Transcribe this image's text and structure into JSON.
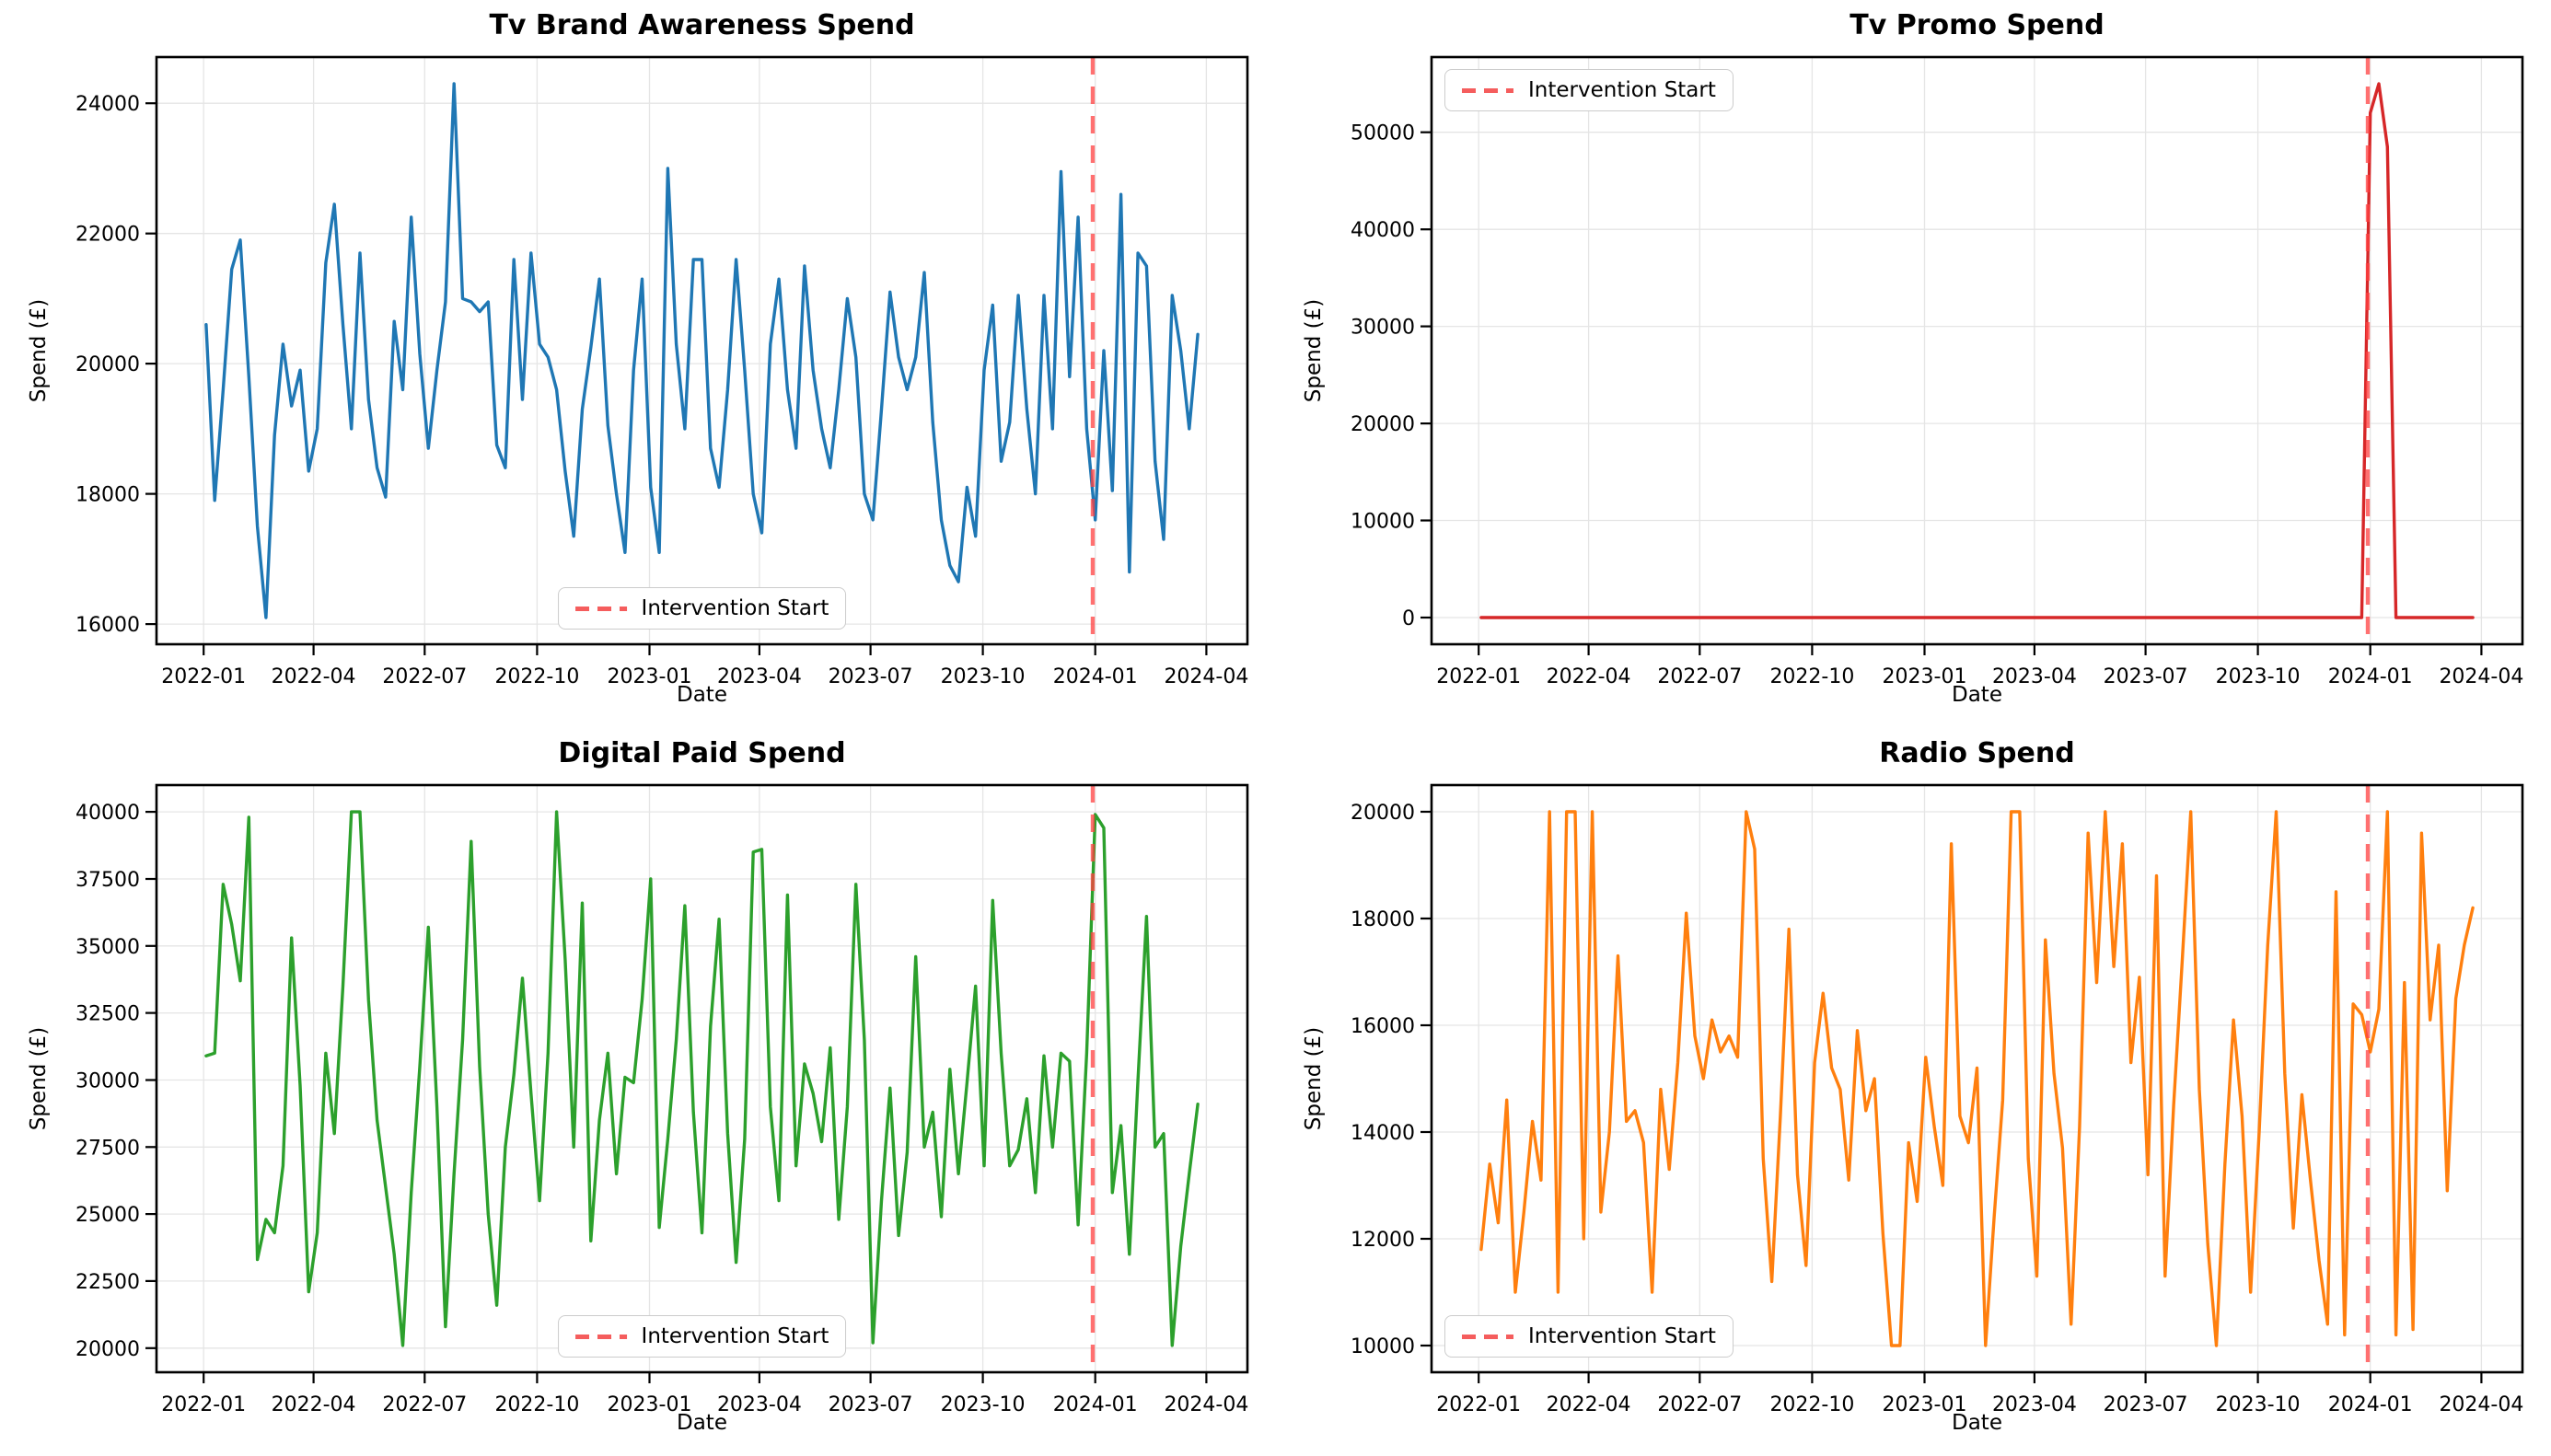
{
  "chart_data": {
    "type": "line",
    "figure_note": "2x2 grid of weekly marketing spend time series",
    "style": {
      "grid_color": "#e5e5e5",
      "spine_color": "#000000",
      "background": "#ffffff"
    },
    "x_axis": {
      "label": "Date",
      "start_date": "2022-01-03",
      "interval_days": 7,
      "n_points": 117,
      "ticks": [
        {
          "date": "2022-01-01",
          "label": "2022-01"
        },
        {
          "date": "2022-04-01",
          "label": "2022-04"
        },
        {
          "date": "2022-07-01",
          "label": "2022-07"
        },
        {
          "date": "2022-10-01",
          "label": "2022-10"
        },
        {
          "date": "2023-01-01",
          "label": "2023-01"
        },
        {
          "date": "2023-04-01",
          "label": "2023-04"
        },
        {
          "date": "2023-07-01",
          "label": "2023-07"
        },
        {
          "date": "2023-10-01",
          "label": "2023-10"
        },
        {
          "date": "2024-01-01",
          "label": "2024-01"
        },
        {
          "date": "2024-04-01",
          "label": "2024-04"
        }
      ]
    },
    "intervention": {
      "label": "Intervention Start",
      "date": "2023-12-30",
      "line_color": "#ff4040",
      "line_opacity": 0.75,
      "legend_dash_color": "#f55d5d"
    },
    "charts": [
      {
        "title": "Tv Brand Awareness Spend",
        "ylabel": "Spend (£)",
        "xlabel": "Date",
        "color": "#1f77b4",
        "ylim": [
          15690,
          24710
        ],
        "y_ticks": [
          16000,
          18000,
          20000,
          22000,
          24000
        ],
        "legend_pos": "lower-center",
        "values": [
          20600,
          17900,
          19600,
          21450,
          21900,
          19800,
          17500,
          16100,
          18900,
          20300,
          19350,
          19900,
          18350,
          19000,
          21550,
          22450,
          20600,
          19000,
          21700,
          19450,
          18400,
          17950,
          20650,
          19600,
          22250,
          20150,
          18700,
          19900,
          20950,
          24300,
          21000,
          20950,
          20800,
          20950,
          18750,
          18400,
          21600,
          19450,
          21700,
          20300,
          20100,
          19600,
          18350,
          17350,
          19300,
          20250,
          21300,
          19050,
          18000,
          17100,
          19900,
          21300,
          18100,
          17100,
          23000,
          20300,
          19000,
          21600,
          21600,
          18700,
          18100,
          19600,
          21600,
          19900,
          18000,
          17400,
          20300,
          21300,
          19600,
          18700,
          21500,
          19900,
          19000,
          18400,
          19600,
          21000,
          20100,
          18000,
          17600,
          19300,
          21100,
          20100,
          19600,
          20100,
          21400,
          19100,
          17600,
          16900,
          16650,
          18100,
          17350,
          19900,
          20900,
          18500,
          19100,
          21050,
          19300,
          18000,
          21050,
          19000,
          22950,
          19800,
          22250,
          19000,
          17600,
          20200,
          18050,
          22600,
          16800,
          21700,
          21500,
          18500,
          17300,
          21050,
          20200,
          19000,
          20450
        ]
      },
      {
        "title": "Tv Promo Spend",
        "ylabel": "Spend (£)",
        "xlabel": "Date",
        "color": "#d62728",
        "ylim": [
          -2750,
          57750
        ],
        "y_ticks": [
          0,
          10000,
          20000,
          30000,
          40000,
          50000
        ],
        "legend_pos": "upper-left",
        "values": [
          0,
          0,
          0,
          0,
          0,
          0,
          0,
          0,
          0,
          0,
          0,
          0,
          0,
          0,
          0,
          0,
          0,
          0,
          0,
          0,
          0,
          0,
          0,
          0,
          0,
          0,
          0,
          0,
          0,
          0,
          0,
          0,
          0,
          0,
          0,
          0,
          0,
          0,
          0,
          0,
          0,
          0,
          0,
          0,
          0,
          0,
          0,
          0,
          0,
          0,
          0,
          0,
          0,
          0,
          0,
          0,
          0,
          0,
          0,
          0,
          0,
          0,
          0,
          0,
          0,
          0,
          0,
          0,
          0,
          0,
          0,
          0,
          0,
          0,
          0,
          0,
          0,
          0,
          0,
          0,
          0,
          0,
          0,
          0,
          0,
          0,
          0,
          0,
          0,
          0,
          0,
          0,
          0,
          0,
          0,
          0,
          0,
          0,
          0,
          0,
          0,
          0,
          0,
          0,
          52000,
          55000,
          48500,
          0,
          0,
          0,
          0,
          0,
          0,
          0,
          0,
          0,
          0
        ]
      },
      {
        "title": "Digital Paid Spend",
        "ylabel": "Spend (£)",
        "xlabel": "Date",
        "color": "#2ca02c",
        "ylim": [
          19100,
          41000
        ],
        "y_ticks": [
          20000,
          22500,
          25000,
          27500,
          30000,
          32500,
          35000,
          37500,
          40000
        ],
        "legend_pos": "lower-center",
        "values": [
          30900,
          31000,
          37300,
          35800,
          33700,
          39800,
          23300,
          24800,
          24300,
          26800,
          35300,
          29800,
          22100,
          24300,
          31000,
          28000,
          33500,
          40000,
          40000,
          33000,
          28500,
          26000,
          23500,
          20100,
          25800,
          30500,
          35700,
          29000,
          20800,
          26500,
          31500,
          38900,
          30500,
          25000,
          21600,
          27500,
          30200,
          33800,
          29500,
          25500,
          31000,
          40000,
          34500,
          27500,
          36600,
          24000,
          28500,
          31000,
          26500,
          30100,
          29900,
          33000,
          37500,
          24500,
          27800,
          31500,
          36500,
          28800,
          24300,
          32000,
          36000,
          28000,
          23200,
          27800,
          38500,
          38600,
          29000,
          25500,
          36900,
          26800,
          30600,
          29500,
          27700,
          31200,
          24800,
          29000,
          37300,
          31500,
          20200,
          25500,
          29700,
          24200,
          27300,
          34600,
          27500,
          28800,
          24900,
          30400,
          26500,
          29900,
          33500,
          26800,
          36700,
          31000,
          26800,
          27400,
          29300,
          25800,
          30900,
          27500,
          31000,
          30700,
          24600,
          31000,
          39900,
          39400,
          25800,
          28300,
          23500,
          30000,
          36100,
          27500,
          28000,
          20100,
          23800,
          26500,
          29100
        ]
      },
      {
        "title": "Radio Spend",
        "ylabel": "Spend (£)",
        "xlabel": "Date",
        "color": "#ff7f0e",
        "ylim": [
          9500,
          20500
        ],
        "y_ticks": [
          10000,
          12000,
          14000,
          16000,
          18000,
          20000
        ],
        "legend_pos": "lower-left",
        "values": [
          11800,
          13400,
          12300,
          14600,
          11000,
          12500,
          14200,
          13100,
          20000,
          11000,
          20000,
          20000,
          12000,
          20000,
          12500,
          14000,
          17300,
          14200,
          14400,
          13800,
          11000,
          14800,
          13300,
          15300,
          18100,
          15800,
          15000,
          16100,
          15500,
          15800,
          15400,
          20000,
          19300,
          13500,
          11200,
          14300,
          17800,
          13200,
          11500,
          15300,
          16600,
          15200,
          14800,
          13100,
          15900,
          14400,
          15000,
          12100,
          10000,
          10000,
          13800,
          12700,
          15400,
          14100,
          13000,
          19400,
          14300,
          13800,
          15200,
          10000,
          12400,
          14600,
          20000,
          20000,
          13500,
          11300,
          17600,
          15100,
          13700,
          10400,
          14100,
          19600,
          16800,
          20000,
          17100,
          19400,
          15300,
          16900,
          13200,
          18800,
          11300,
          14500,
          17200,
          20000,
          14800,
          11900,
          10000,
          13400,
          16100,
          14300,
          11000,
          14000,
          17500,
          20000,
          15100,
          12200,
          14700,
          13100,
          11600,
          10400,
          18500,
          10200,
          16400,
          16200,
          15500,
          16300,
          20000,
          10200,
          16800,
          10300,
          19600,
          16100,
          17500,
          12900,
          16500,
          17500,
          18200
        ]
      }
    ]
  }
}
